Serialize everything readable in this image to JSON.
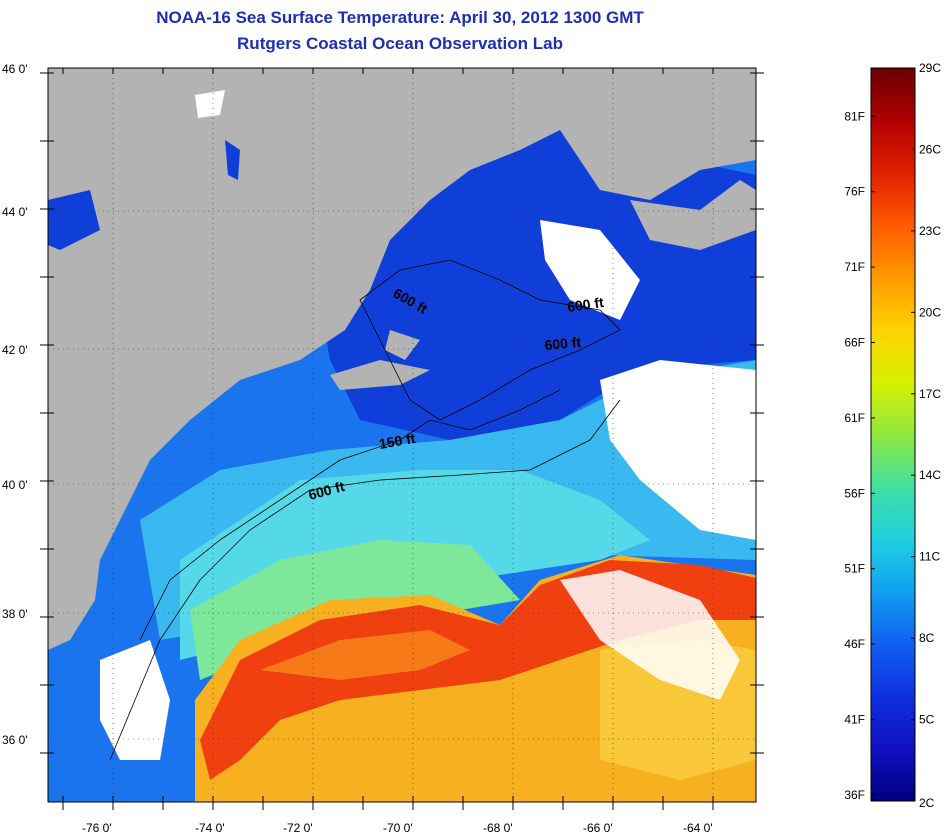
{
  "title": "NOAA-16 Sea Surface Temperature:  April 30, 2012 1300 GMT",
  "subtitle": "Rutgers Coastal Ocean Observation Lab",
  "axes": {
    "lat_labels": [
      "46 0'",
      "44 0'",
      "42 0'",
      "40 0'",
      "38 0'",
      "36 0'"
    ],
    "lon_labels": [
      "-76 0'",
      "-74 0'",
      "-72 0'",
      "-70 0'",
      "-68 0'",
      "-66 0'",
      "-64 0'"
    ]
  },
  "contours": [
    {
      "label": "600 ft"
    },
    {
      "label": "600 ft"
    },
    {
      "label": "600 ft"
    },
    {
      "label": "150 ft"
    },
    {
      "label": "600 ft"
    }
  ],
  "colorbar": {
    "celsius": [
      "29C",
      "26C",
      "23C",
      "20C",
      "17C",
      "14C",
      "11C",
      "8C",
      "5C",
      "2C"
    ],
    "fahrenheit": [
      "81F",
      "76F",
      "71F",
      "66F",
      "61F",
      "56F",
      "51F",
      "46F",
      "41F",
      "36F"
    ],
    "colors": [
      "#6a0000",
      "#b00000",
      "#e02000",
      "#ff5a00",
      "#ff9a00",
      "#ffd200",
      "#d6f000",
      "#90e840",
      "#40e0a0",
      "#20d0e0",
      "#10a0f0",
      "#1060f0",
      "#1030e0",
      "#1010c0",
      "#000080"
    ]
  },
  "colors": {
    "title": "#1c2fb0",
    "land": "#b3b3b3",
    "cloud": "#ffffff"
  }
}
